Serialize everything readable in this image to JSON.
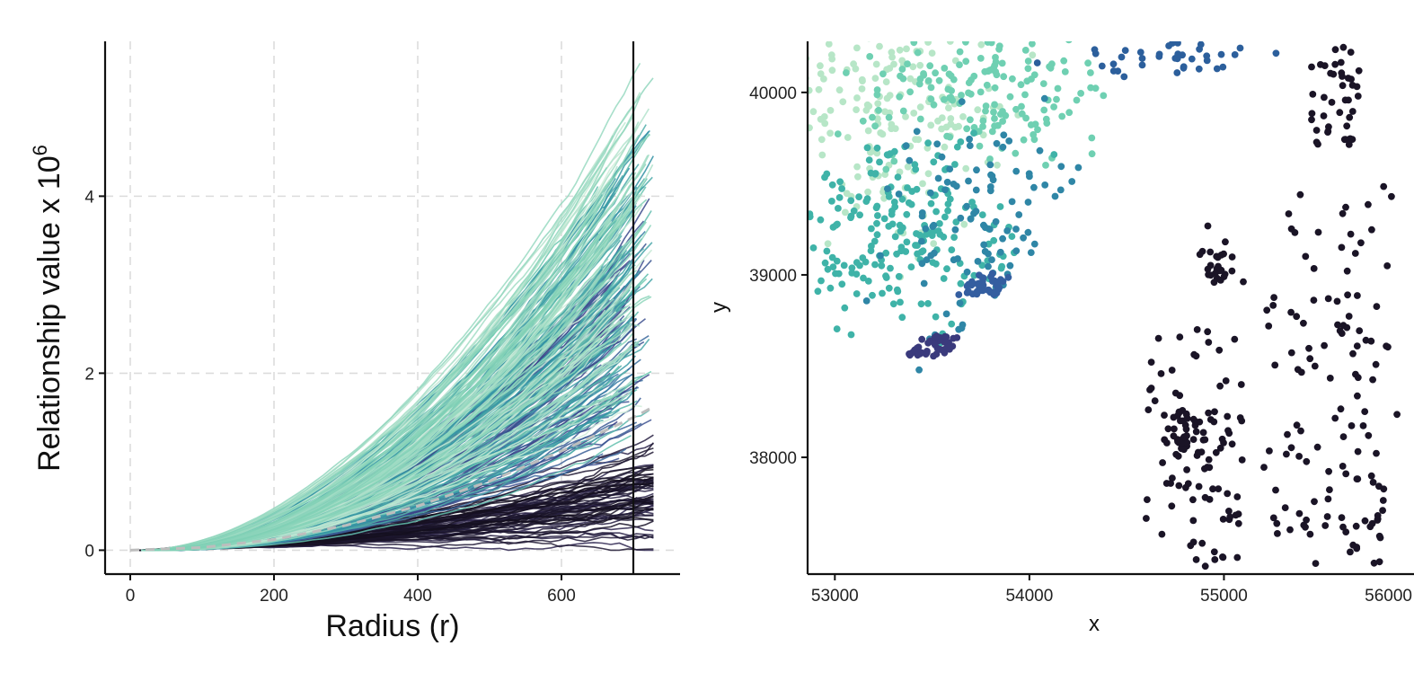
{
  "chart_data": [
    {
      "type": "line",
      "xlabel": "Radius (r)",
      "ylabel_main": "Relationship value x 10",
      "ylabel_exponent": "6",
      "xlim": [
        -35,
        765
      ],
      "ylim": [
        -0.27,
        5.75
      ],
      "x_ticks": [
        0,
        200,
        400,
        600
      ],
      "x_tick_labels": [
        "0",
        "200",
        "400",
        "600"
      ],
      "y_ticks": [
        0,
        2,
        4
      ],
      "y_tick_labels": [
        "0",
        "2",
        "4"
      ],
      "grid": true,
      "grid_style": "dashed",
      "x_max": 728,
      "vertical_line_x": 700,
      "reference_curve": {
        "style": "dashed",
        "color": "#bdbdbd",
        "x": [
          0,
          100,
          200,
          300,
          400,
          500,
          600,
          700,
          728
        ],
        "y": [
          0,
          0.03,
          0.12,
          0.28,
          0.5,
          0.78,
          1.12,
          1.5,
          1.62
        ]
      },
      "envelopes": [
        {
          "group": "light",
          "color_from": "#d3eedb",
          "color_to": "#7fd0b5",
          "y_at_end_min": 2.0,
          "y_at_end_max": 5.45,
          "count": 90
        },
        {
          "group": "teal",
          "color_from": "#6fcbb0",
          "color_to": "#2f8fa4",
          "y_at_end_min": 1.5,
          "y_at_end_max": 5.0,
          "count": 110
        },
        {
          "group": "blue",
          "color_from": "#3a7fa8",
          "color_to": "#3c3f86",
          "y_at_end_min": 1.3,
          "y_at_end_max": 4.0,
          "count": 90
        },
        {
          "group": "dark",
          "color_from": "#2e2650",
          "color_to": "#140f1e",
          "y_at_end_min": 0.3,
          "y_at_end_max": 1.05,
          "count": 70
        }
      ]
    },
    {
      "type": "scatter",
      "xlabel": "x",
      "ylabel": "y",
      "xlim": [
        52860,
        56000
      ],
      "ylim": [
        37360,
        40280
      ],
      "x_ticks": [
        53000,
        54000,
        55000,
        56000
      ],
      "x_tick_labels": [
        "53000",
        "54000",
        "55000",
        "56000"
      ],
      "y_ticks": [
        38000,
        39000,
        40000
      ],
      "y_tick_labels": [
        "38000",
        "39000",
        "40000"
      ],
      "grid": false,
      "clusters": [
        {
          "name": "light-green",
          "color": "#b7e6c7",
          "cx": 53300,
          "cy": 39900,
          "sx": 260,
          "sy": 350,
          "n": 180
        },
        {
          "name": "green",
          "color": "#6fd0b2",
          "cx": 53800,
          "cy": 40000,
          "sx": 300,
          "sy": 160,
          "n": 150
        },
        {
          "name": "teal",
          "color": "#3fb3a8",
          "cx": 53300,
          "cy": 39250,
          "sx": 320,
          "sy": 250,
          "n": 220
        },
        {
          "name": "ocean",
          "color": "#2f86a6",
          "cx": 53800,
          "cy": 39300,
          "sx": 250,
          "sy": 300,
          "n": 100
        },
        {
          "name": "blue-cluster",
          "color": "#345ea0",
          "cx": 54050,
          "cy": 38940,
          "sx": 45,
          "sy": 50,
          "n": 40
        },
        {
          "name": "purple-ring",
          "color": "#3a3a7c",
          "cx": 53880,
          "cy": 38610,
          "sx": 60,
          "sy": 55,
          "n": 45
        },
        {
          "name": "upper-blue",
          "color": "#2c5f9c",
          "cx": 54700,
          "cy": 40200,
          "sx": 250,
          "sy": 60,
          "n": 40
        },
        {
          "name": "dark-points",
          "color": "#1a1426",
          "cx": 55200,
          "cy": 38500,
          "sx": 400,
          "sy": 700,
          "n": 320
        }
      ]
    }
  ]
}
